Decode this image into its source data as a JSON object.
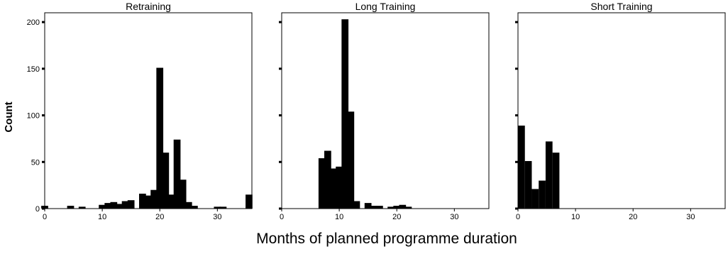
{
  "chart_data": {
    "type": "bar",
    "title": "",
    "xlabel": "Months of planned programme duration",
    "ylabel": "Count",
    "xlim": [
      0,
      36
    ],
    "ylim": [
      0,
      210
    ],
    "bin_width": 1.2,
    "x_ticks": [
      0,
      10,
      20,
      30
    ],
    "y_ticks": [
      0,
      50,
      100,
      150,
      200
    ],
    "legend": "none",
    "grid": false,
    "bar_color": "#000000",
    "panels": [
      {
        "title": "Retraining",
        "bins": [
          {
            "x": 0,
            "count": 3
          },
          {
            "x": 4.5,
            "count": 3
          },
          {
            "x": 6.5,
            "count": 2
          },
          {
            "x": 10,
            "count": 4
          },
          {
            "x": 11,
            "count": 6
          },
          {
            "x": 12,
            "count": 7
          },
          {
            "x": 13,
            "count": 5
          },
          {
            "x": 14,
            "count": 8
          },
          {
            "x": 15,
            "count": 9
          },
          {
            "x": 17,
            "count": 16
          },
          {
            "x": 18,
            "count": 14
          },
          {
            "x": 19,
            "count": 20
          },
          {
            "x": 20,
            "count": 151
          },
          {
            "x": 21,
            "count": 60
          },
          {
            "x": 22,
            "count": 15
          },
          {
            "x": 23,
            "count": 74
          },
          {
            "x": 24,
            "count": 31
          },
          {
            "x": 25,
            "count": 7
          },
          {
            "x": 26,
            "count": 3
          },
          {
            "x": 30,
            "count": 2
          },
          {
            "x": 31,
            "count": 2
          },
          {
            "x": 35.5,
            "count": 15
          }
        ]
      },
      {
        "title": "Long Training",
        "bins": [
          {
            "x": 7,
            "count": 54
          },
          {
            "x": 8,
            "count": 62
          },
          {
            "x": 9,
            "count": 43
          },
          {
            "x": 10,
            "count": 45
          },
          {
            "x": 11,
            "count": 203
          },
          {
            "x": 12,
            "count": 104
          },
          {
            "x": 13,
            "count": 8
          },
          {
            "x": 15,
            "count": 6
          },
          {
            "x": 16,
            "count": 3
          },
          {
            "x": 17,
            "count": 3
          },
          {
            "x": 19,
            "count": 2
          },
          {
            "x": 20,
            "count": 3
          },
          {
            "x": 21,
            "count": 4
          },
          {
            "x": 22,
            "count": 2
          }
        ]
      },
      {
        "title": "Short Training",
        "bins": [
          {
            "x": 0.6,
            "count": 89
          },
          {
            "x": 1.8,
            "count": 51
          },
          {
            "x": 3.0,
            "count": 21
          },
          {
            "x": 4.2,
            "count": 30
          },
          {
            "x": 5.4,
            "count": 72
          },
          {
            "x": 6.6,
            "count": 60
          }
        ]
      }
    ]
  }
}
